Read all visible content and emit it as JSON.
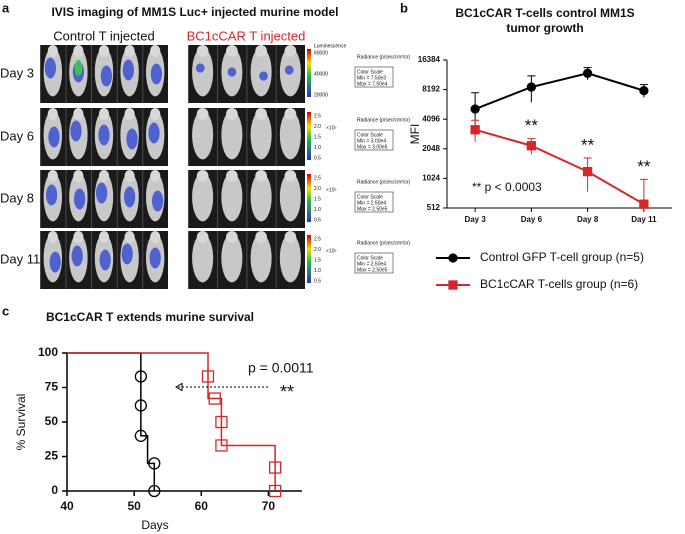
{
  "panel_labels": [
    "a",
    "b",
    "c"
  ],
  "panel_a": {
    "title": "IVIS imaging of MM1S Luc+ injected murine model",
    "groups": [
      "Control T injected",
      "BC1cCAR T injected"
    ],
    "rows": [
      "Day 3",
      "Day 6",
      "Day 8",
      "Day 11"
    ],
    "luminescence": "Luminescence",
    "radiance": "Radiance (p/sec/cm²/sr)",
    "color_scale": "Color Scale",
    "scales": [
      {
        "ticks": [
          "60000",
          "40000",
          "20000"
        ],
        "unit": null,
        "min": "Min = 7.50e3",
        "max": "Max = 7.50e4"
      },
      {
        "ticks": [
          "2.5",
          "2.0",
          "1.5",
          "1.0",
          "0.5"
        ],
        "unit": "×10⁵",
        "min": "Min = 3.00e4",
        "max": "Max = 3.00e5"
      },
      {
        "ticks": [
          "2.5",
          "2.0",
          "1.5",
          "1.0",
          "0.5"
        ],
        "unit": "×10⁵",
        "min": "Min = 2.50e4",
        "max": "Max = 2.50e5"
      },
      {
        "ticks": [
          "2.5",
          "2.0",
          "1.5",
          "1.0",
          "0.5"
        ],
        "unit": "×10⁵",
        "min": "Min = 2.50e4",
        "max": "Max = 2.50e5"
      }
    ]
  },
  "chart_data": [
    {
      "type": "line",
      "title": [
        "BC1cCAR T-cells control MM1S",
        "tumor growth"
      ],
      "y_label": "MFI",
      "categories": [
        "Day 3",
        "Day 6",
        "Day 8",
        "Day 11"
      ],
      "ylim": [
        512,
        16384
      ],
      "yticks": [
        512,
        1024,
        2048,
        4096,
        8192,
        16384
      ],
      "log_scale": true,
      "series": [
        {
          "name": "Control GFP T-cell group (n=5)",
          "color": "#000000",
          "marker": "circle",
          "values": [
            5200,
            8700,
            12000,
            8000
          ],
          "errors": [
            2400,
            2600,
            1700,
            1200
          ]
        },
        {
          "name": "BC1cCAR T-cells group (n=6)",
          "color": "#d62728",
          "marker": "square",
          "values": [
            3200,
            2200,
            1200,
            560
          ],
          "errors": [
            800,
            400,
            450,
            440
          ]
        }
      ],
      "annotations": [
        "**",
        "**",
        "**",
        "** p < 0.0003"
      ]
    },
    {
      "type": "step",
      "title": "BC1cCAR T extends murine survival",
      "x_label": "Days",
      "y_label": "% Survival",
      "xlim": [
        40,
        75
      ],
      "xticks": [
        40,
        50,
        60,
        70
      ],
      "ylim": [
        0,
        100
      ],
      "yticks": [
        0,
        25,
        50,
        75,
        100
      ],
      "series": [
        {
          "color": "#000000",
          "marker": "circle",
          "x": [
            40,
            51,
            52,
            53
          ],
          "values": [
            100,
            40,
            20,
            0
          ],
          "marks_x": [
            51,
            51,
            51,
            53,
            53
          ],
          "marks_values": [
            83,
            62,
            40,
            20,
            0
          ]
        },
        {
          "color": "#d62728",
          "marker": "square",
          "x": [
            40,
            61,
            63,
            71
          ],
          "values": [
            100,
            67,
            33,
            0
          ],
          "marks_x": [
            61,
            62,
            63,
            63,
            71,
            71
          ],
          "marks_values": [
            83,
            67,
            50,
            33,
            17,
            0
          ]
        }
      ],
      "annotations": [
        "p = 0.0011",
        "**"
      ]
    }
  ]
}
